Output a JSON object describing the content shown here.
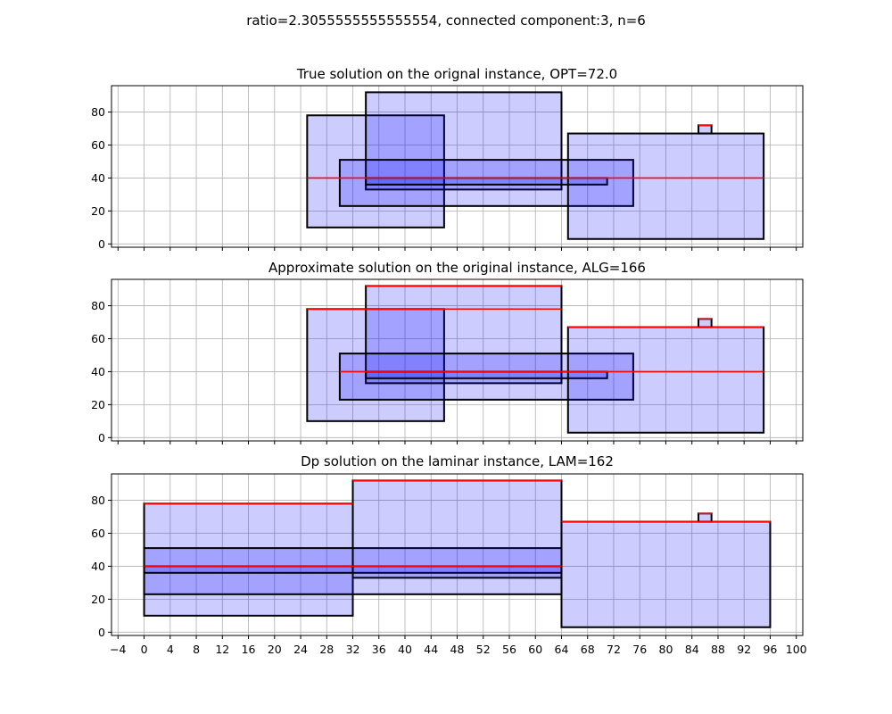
{
  "figure": {
    "suptitle": "ratio=2.3055555555555554, connected component:3, n=6"
  },
  "colors": {
    "rect_fill": "#0000ff",
    "rect_fill_opacity": 0.2,
    "rect_edge": "#000000",
    "solution_line": "#ff0000",
    "grid": "#b0b0b0"
  },
  "chart_data": [
    {
      "type": "rectangles",
      "title": "True solution on the orignal instance, OPT=72.0",
      "xlim": [
        -5,
        101
      ],
      "ylim": [
        -2,
        96
      ],
      "yticks": [
        0,
        20,
        40,
        60,
        80
      ],
      "grid": true,
      "rectangles": [
        {
          "x0": 25,
          "x1": 46,
          "y0": 10,
          "y1": 78
        },
        {
          "x0": 34,
          "x1": 64,
          "y0": 33,
          "y1": 92
        },
        {
          "x0": 30,
          "x1": 75,
          "y0": 23,
          "y1": 51
        },
        {
          "x0": 34,
          "x1": 71,
          "y0": 36,
          "y1": 40
        },
        {
          "x0": 65,
          "x1": 95,
          "y0": 3,
          "y1": 67
        },
        {
          "x0": 85,
          "x1": 87,
          "y0": 67,
          "y1": 72
        }
      ],
      "solution_lines": [
        {
          "x0": 25,
          "x1": 95,
          "y": 40
        },
        {
          "x0": 85,
          "x1": 87,
          "y": 72
        }
      ]
    },
    {
      "type": "rectangles",
      "title": "Approximate solution on the original instance, ALG=166",
      "xlim": [
        -5,
        101
      ],
      "ylim": [
        -2,
        96
      ],
      "yticks": [
        0,
        20,
        40,
        60,
        80
      ],
      "grid": true,
      "rectangles": [
        {
          "x0": 25,
          "x1": 46,
          "y0": 10,
          "y1": 78
        },
        {
          "x0": 34,
          "x1": 64,
          "y0": 33,
          "y1": 92
        },
        {
          "x0": 30,
          "x1": 75,
          "y0": 23,
          "y1": 51
        },
        {
          "x0": 34,
          "x1": 71,
          "y0": 36,
          "y1": 40
        },
        {
          "x0": 65,
          "x1": 95,
          "y0": 3,
          "y1": 67
        },
        {
          "x0": 85,
          "x1": 87,
          "y0": 67,
          "y1": 72
        }
      ],
      "solution_lines": [
        {
          "x0": 25,
          "x1": 64,
          "y": 78
        },
        {
          "x0": 34,
          "x1": 64,
          "y": 92
        },
        {
          "x0": 30,
          "x1": 95,
          "y": 40
        },
        {
          "x0": 65,
          "x1": 95,
          "y": 67
        },
        {
          "x0": 85,
          "x1": 87,
          "y": 72
        }
      ]
    },
    {
      "type": "rectangles",
      "title": "Dp solution on the laminar instance, LAM=162",
      "xlim": [
        -5,
        101
      ],
      "ylim": [
        -2,
        96
      ],
      "yticks": [
        0,
        20,
        40,
        60,
        80
      ],
      "xticks": [
        -4,
        0,
        4,
        8,
        12,
        16,
        20,
        24,
        28,
        32,
        36,
        40,
        44,
        48,
        52,
        56,
        60,
        64,
        68,
        72,
        76,
        80,
        84,
        88,
        92,
        96,
        100
      ],
      "grid": true,
      "rectangles": [
        {
          "x0": 0,
          "x1": 32,
          "y0": 10,
          "y1": 78
        },
        {
          "x0": 0,
          "x1": 64,
          "y0": 23,
          "y1": 51
        },
        {
          "x0": 0,
          "x1": 64,
          "y0": 36,
          "y1": 40
        },
        {
          "x0": 32,
          "x1": 64,
          "y0": 33,
          "y1": 92
        },
        {
          "x0": 64,
          "x1": 96,
          "y0": 3,
          "y1": 67
        },
        {
          "x0": 85,
          "x1": 87,
          "y0": 67,
          "y1": 72
        }
      ],
      "solution_lines": [
        {
          "x0": 0,
          "x1": 32,
          "y": 78
        },
        {
          "x0": 32,
          "x1": 64,
          "y": 92
        },
        {
          "x0": 0,
          "x1": 64,
          "y": 40
        },
        {
          "x0": 64,
          "x1": 96,
          "y": 67
        },
        {
          "x0": 85,
          "x1": 87,
          "y": 72
        }
      ]
    }
  ]
}
